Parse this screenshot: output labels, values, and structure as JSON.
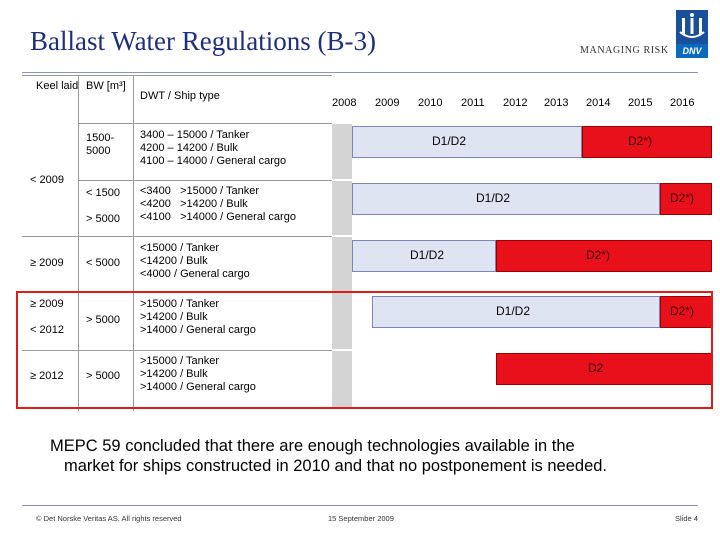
{
  "title": "Ballast Water Regulations (B-3)",
  "brand": {
    "tagline": "MANAGING RISK",
    "logo_text": "DNV"
  },
  "table": {
    "headers": {
      "keel": "Keel laid",
      "bw": "BW [m³]",
      "dwt": "DWT / Ship type"
    },
    "years": [
      "2008",
      "2009",
      "2010",
      "2011",
      "2012",
      "2013",
      "2014",
      "2015",
      "2016"
    ],
    "rows": [
      {
        "keel": "< 2009",
        "bw": "1500-\n5000",
        "dwt": "3400 – 15000 / Tanker\n4200 – 14200 / Bulk\n4100 – 14000 / General cargo",
        "blue_label": "D1/D2",
        "red_label": "D2*)"
      },
      {
        "keel": "",
        "bw": "< 1500\n\n> 5000",
        "dwt": "<3400   >15000 / Tanker\n<4200   >14200 / Bulk\n<4100   >14000 / General cargo",
        "blue_label": "D1/D2",
        "red_label": "D2*)"
      },
      {
        "keel": "≥ 2009",
        "bw": "< 5000",
        "dwt": "<15000 / Tanker\n<14200 / Bulk\n<4000 / General cargo",
        "blue_label": "D1/D2",
        "red_label": "D2*)"
      },
      {
        "keel": "≥ 2009\n\n< 2012",
        "bw": "> 5000",
        "dwt": ">15000 / Tanker\n>14200 / Bulk\n>14000 / General cargo",
        "blue_label": "D1/D2",
        "red_label": "D2*)"
      },
      {
        "keel": "≥ 2012",
        "bw": "> 5000",
        "dwt": ">15000 / Tanker\n>14200 / Bulk\n>14000 / General cargo",
        "blue_label": "",
        "red_label": "D2"
      }
    ]
  },
  "conclusion": {
    "line1": "MEPC 59 concluded that there are enough technologies available in the",
    "line2": "market for ships constructed in 2010 and that no postponement is needed."
  },
  "footer": {
    "copyright": "© Det Norske Veritas AS. All rights reserved",
    "date": "15 September 2009",
    "slide": "Slide 4"
  },
  "colors": {
    "title": "#1f2f7a",
    "red_bar": "#e8101a",
    "blue_bar": "#dfe4f3",
    "highlight": "#e11a1a"
  }
}
